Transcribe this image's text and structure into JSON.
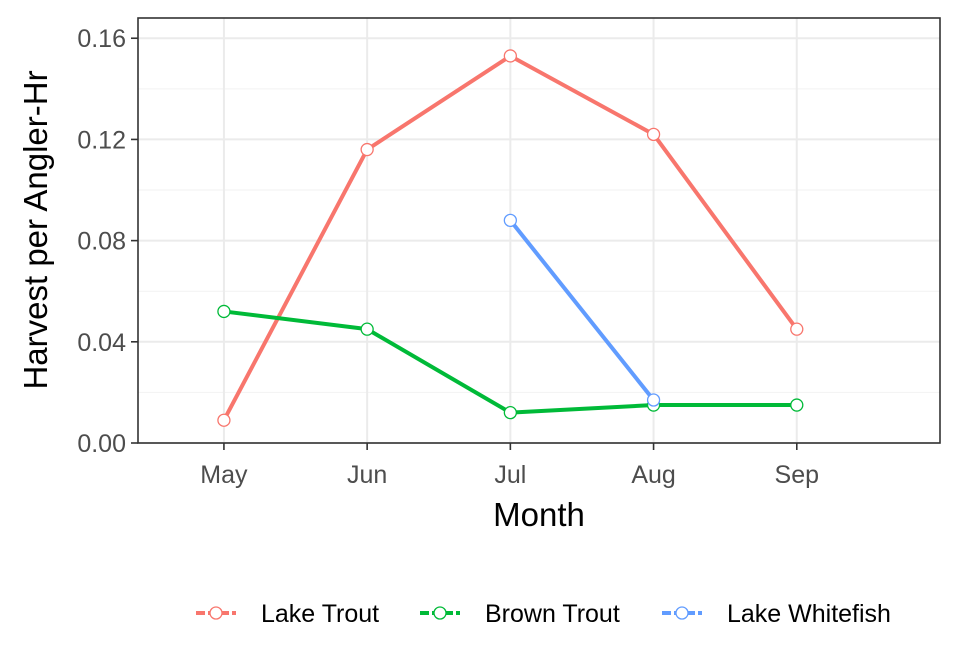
{
  "chart_data": {
    "type": "line",
    "xlabel": "Month",
    "ylabel": "Harvest per Angler-Hr",
    "categories": [
      "May",
      "Jun",
      "Jul",
      "Aug",
      "Sep"
    ],
    "ylim": [
      0,
      0.168
    ],
    "yticks": [
      0,
      0.04,
      0.08,
      0.12,
      0.16
    ],
    "ytick_labels": [
      "0.00",
      "0.04",
      "0.08",
      "0.12",
      "0.16"
    ],
    "grid": true,
    "legend_position": "bottom",
    "series": [
      {
        "name": "Lake Trout",
        "color": "#F8766D",
        "values": [
          0.009,
          0.116,
          0.153,
          0.122,
          0.045
        ]
      },
      {
        "name": "Brown Trout",
        "color": "#00BA38",
        "values": [
          0.052,
          0.045,
          0.012,
          0.015,
          0.015
        ]
      },
      {
        "name": "Lake Whitefish",
        "color": "#619CFF",
        "values": [
          null,
          null,
          0.088,
          0.017,
          null
        ]
      }
    ]
  }
}
